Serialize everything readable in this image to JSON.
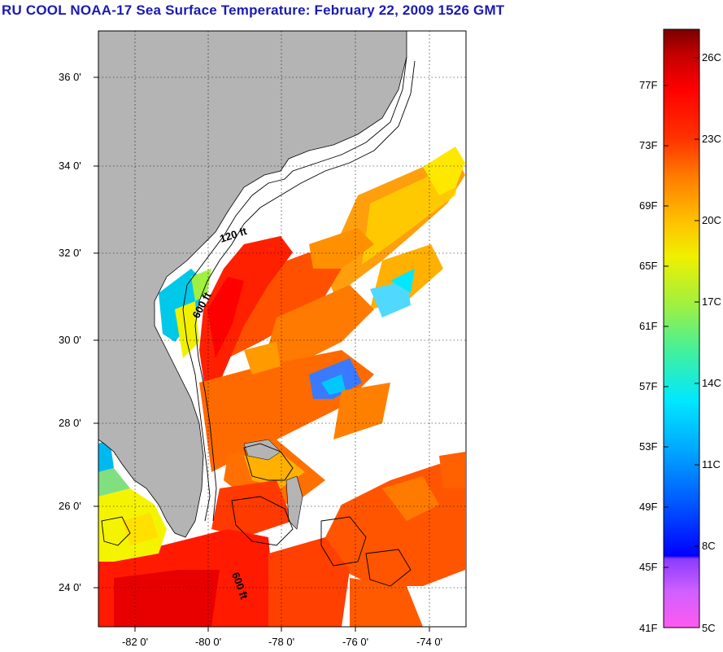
{
  "title": "RU COOL  NOAA-17  Sea Surface Temperature:  February 22, 2009 1526 GMT",
  "map": {
    "latitude_labels": [
      "36 0'",
      "34 0'",
      "32 0'",
      "30 0'",
      "28 0'",
      "26 0'",
      "24 0'"
    ],
    "longitude_labels": [
      "-82 0'",
      "-80 0'",
      "-78 0'",
      "-76 0'",
      "-74 0'"
    ],
    "contour_labels": [
      "120 ft",
      "600 ft",
      "600 ft"
    ],
    "colors": {
      "land": "#b4b4b4",
      "cloud": "#ffffff",
      "frame": "#000000"
    }
  },
  "colorbar": {
    "fahrenheit_labels": [
      "77F",
      "73F",
      "69F",
      "65F",
      "61F",
      "57F",
      "53F",
      "49F",
      "45F",
      "41F"
    ],
    "celsius_labels": [
      "26C",
      "23C",
      "20C",
      "17C",
      "14C",
      "11C",
      "8C",
      "5C"
    ]
  }
}
